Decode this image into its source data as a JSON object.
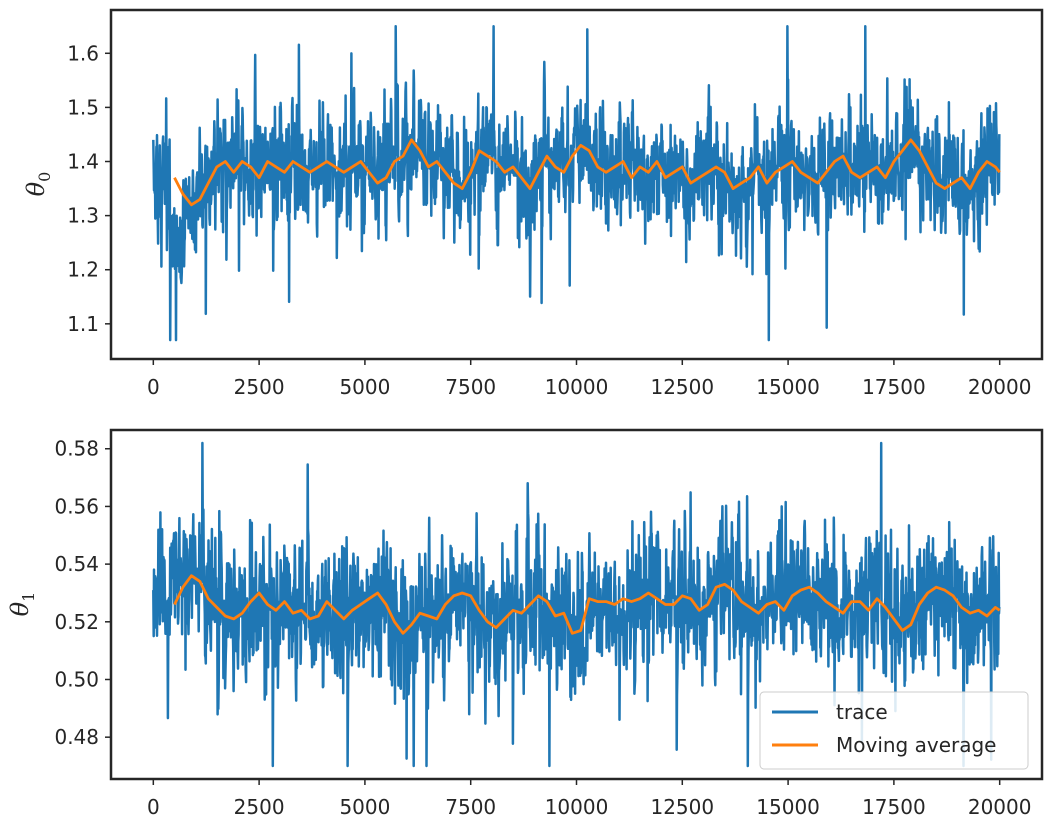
{
  "chart_data": [
    {
      "type": "line",
      "ylabel": "θ",
      "ylabel_sub": "0",
      "xlim": [
        -1000,
        21000
      ],
      "ylim": [
        1.035,
        1.68
      ],
      "xticks": [
        0,
        2500,
        5000,
        7500,
        10000,
        12500,
        15000,
        17500,
        20000
      ],
      "xtick_labels": [
        "0",
        "2500",
        "5000",
        "7500",
        "10000",
        "12500",
        "15000",
        "17500",
        "20000"
      ],
      "yticks": [
        1.1,
        1.2,
        1.3,
        1.4,
        1.5,
        1.6
      ],
      "ytick_labels": [
        "1.1",
        "1.2",
        "1.3",
        "1.4",
        "1.5",
        "1.6"
      ],
      "grid": false,
      "legend": null,
      "series": [
        {
          "role": "trace",
          "color": "#1f77b4",
          "n_points": 20000,
          "mean": 1.38,
          "std": 0.075,
          "min": 1.07,
          "max": 1.65,
          "start": 1.44
        },
        {
          "role": "moving_average",
          "color": "#ff7f0e",
          "window": 500,
          "x": [
            500,
            700,
            900,
            1100,
            1300,
            1500,
            1700,
            1900,
            2100,
            2300,
            2500,
            2700,
            2900,
            3100,
            3300,
            3500,
            3700,
            3900,
            4100,
            4300,
            4500,
            4700,
            4900,
            5100,
            5300,
            5500,
            5700,
            5900,
            6100,
            6300,
            6500,
            6700,
            6900,
            7100,
            7300,
            7500,
            7700,
            7900,
            8100,
            8300,
            8500,
            8700,
            8900,
            9100,
            9300,
            9500,
            9700,
            9900,
            10100,
            10300,
            10500,
            10700,
            10900,
            11100,
            11300,
            11500,
            11700,
            11900,
            12100,
            12300,
            12500,
            12700,
            12900,
            13100,
            13300,
            13500,
            13700,
            13900,
            14100,
            14300,
            14500,
            14700,
            14900,
            15100,
            15300,
            15500,
            15700,
            15900,
            16100,
            16300,
            16500,
            16700,
            16900,
            17100,
            17300,
            17500,
            17700,
            17900,
            18100,
            18300,
            18500,
            18700,
            18900,
            19100,
            19300,
            19500,
            19700,
            19900,
            20000
          ],
          "y": [
            1.37,
            1.34,
            1.32,
            1.33,
            1.36,
            1.39,
            1.4,
            1.38,
            1.4,
            1.39,
            1.37,
            1.4,
            1.39,
            1.38,
            1.4,
            1.39,
            1.38,
            1.39,
            1.4,
            1.39,
            1.38,
            1.39,
            1.4,
            1.38,
            1.36,
            1.37,
            1.4,
            1.41,
            1.44,
            1.42,
            1.39,
            1.4,
            1.38,
            1.36,
            1.35,
            1.38,
            1.42,
            1.41,
            1.4,
            1.38,
            1.39,
            1.37,
            1.35,
            1.38,
            1.41,
            1.39,
            1.38,
            1.41,
            1.43,
            1.42,
            1.39,
            1.38,
            1.39,
            1.4,
            1.37,
            1.39,
            1.38,
            1.4,
            1.37,
            1.38,
            1.39,
            1.36,
            1.37,
            1.38,
            1.39,
            1.38,
            1.35,
            1.36,
            1.37,
            1.39,
            1.36,
            1.38,
            1.39,
            1.4,
            1.38,
            1.37,
            1.36,
            1.38,
            1.4,
            1.41,
            1.38,
            1.37,
            1.38,
            1.39,
            1.37,
            1.4,
            1.42,
            1.44,
            1.42,
            1.39,
            1.36,
            1.35,
            1.36,
            1.37,
            1.35,
            1.38,
            1.4,
            1.39,
            1.38
          ]
        }
      ]
    },
    {
      "type": "line",
      "ylabel": "θ",
      "ylabel_sub": "1",
      "xlim": [
        -1000,
        21000
      ],
      "ylim": [
        0.4655,
        0.5865
      ],
      "xticks": [
        0,
        2500,
        5000,
        7500,
        10000,
        12500,
        15000,
        17500,
        20000
      ],
      "xtick_labels": [
        "0",
        "2500",
        "5000",
        "7500",
        "10000",
        "12500",
        "15000",
        "17500",
        "20000"
      ],
      "yticks": [
        0.48,
        0.5,
        0.52,
        0.54,
        0.56,
        0.58
      ],
      "ytick_labels": [
        "0.48",
        "0.50",
        "0.52",
        "0.54",
        "0.56",
        "0.58"
      ],
      "grid": false,
      "legend": {
        "placement": "lower-right",
        "entries": [
          "trace",
          "Moving average"
        ]
      },
      "series": [
        {
          "name": "trace",
          "role": "trace",
          "color": "#1f77b4",
          "n_points": 20000,
          "mean": 0.524,
          "std": 0.017,
          "min": 0.47,
          "max": 0.582,
          "start": 0.531
        },
        {
          "name": "Moving average",
          "role": "moving_average",
          "color": "#ff7f0e",
          "window": 500,
          "x": [
            500,
            700,
            900,
            1100,
            1300,
            1500,
            1700,
            1900,
            2100,
            2300,
            2500,
            2700,
            2900,
            3100,
            3300,
            3500,
            3700,
            3900,
            4100,
            4300,
            4500,
            4700,
            4900,
            5100,
            5300,
            5500,
            5700,
            5900,
            6100,
            6300,
            6500,
            6700,
            6900,
            7100,
            7300,
            7500,
            7700,
            7900,
            8100,
            8300,
            8500,
            8700,
            8900,
            9100,
            9300,
            9500,
            9700,
            9900,
            10100,
            10300,
            10500,
            10700,
            10900,
            11100,
            11300,
            11500,
            11700,
            11900,
            12100,
            12300,
            12500,
            12700,
            12900,
            13100,
            13300,
            13500,
            13700,
            13900,
            14100,
            14300,
            14500,
            14700,
            14900,
            15100,
            15300,
            15500,
            15700,
            15900,
            16100,
            16300,
            16500,
            16700,
            16900,
            17100,
            17300,
            17500,
            17700,
            17900,
            18100,
            18300,
            18500,
            18700,
            18900,
            19100,
            19300,
            19500,
            19700,
            19900,
            20000
          ],
          "y": [
            0.526,
            0.532,
            0.536,
            0.534,
            0.528,
            0.525,
            0.522,
            0.521,
            0.523,
            0.527,
            0.53,
            0.526,
            0.524,
            0.527,
            0.523,
            0.524,
            0.521,
            0.522,
            0.527,
            0.524,
            0.521,
            0.524,
            0.526,
            0.528,
            0.53,
            0.526,
            0.52,
            0.516,
            0.519,
            0.523,
            0.522,
            0.521,
            0.526,
            0.529,
            0.53,
            0.529,
            0.524,
            0.52,
            0.518,
            0.521,
            0.524,
            0.523,
            0.526,
            0.529,
            0.527,
            0.522,
            0.523,
            0.516,
            0.517,
            0.528,
            0.527,
            0.527,
            0.526,
            0.528,
            0.527,
            0.528,
            0.53,
            0.528,
            0.526,
            0.526,
            0.529,
            0.528,
            0.524,
            0.526,
            0.532,
            0.533,
            0.531,
            0.527,
            0.525,
            0.523,
            0.526,
            0.527,
            0.524,
            0.529,
            0.531,
            0.532,
            0.53,
            0.527,
            0.525,
            0.523,
            0.527,
            0.527,
            0.524,
            0.528,
            0.525,
            0.521,
            0.517,
            0.519,
            0.526,
            0.53,
            0.532,
            0.531,
            0.529,
            0.525,
            0.523,
            0.524,
            0.522,
            0.525,
            0.524
          ]
        }
      ]
    }
  ]
}
